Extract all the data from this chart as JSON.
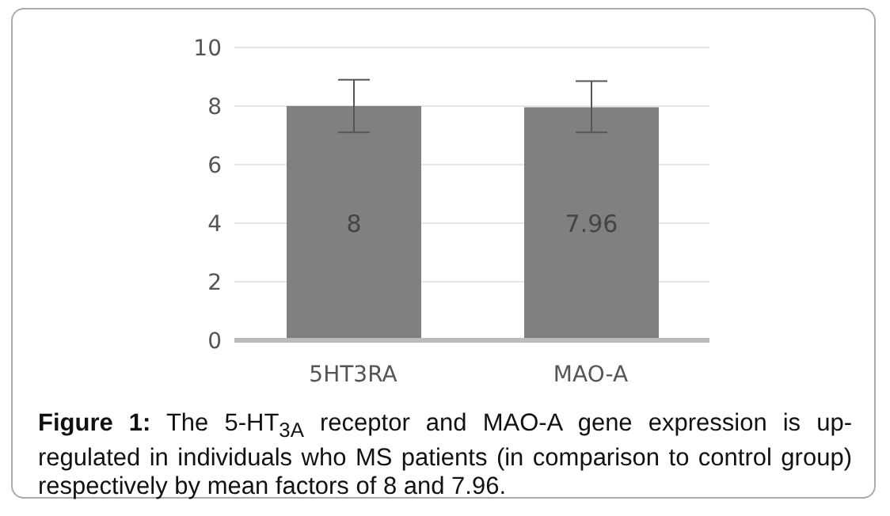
{
  "chart_data": {
    "type": "bar",
    "categories": [
      "5HT3RA",
      "MAO-A"
    ],
    "values": [
      8,
      7.96
    ],
    "color": "#808080",
    "errors": [
      [
        7.1,
        8.9
      ],
      [
        7.1,
        8.85
      ]
    ],
    "data_labels": true,
    "ylim": [
      0,
      10
    ],
    "yticks": [
      0,
      2,
      4,
      6,
      8,
      10
    ],
    "grid": "y",
    "annotations": [
      "Figure 1: The 5-HT$_{3A}$ receptor and MAO-A gene expression is up-regulated in individuals who MS patients (in comparison to control group) respectively by mean factors of 8 and 7.96."
    ]
  }
}
